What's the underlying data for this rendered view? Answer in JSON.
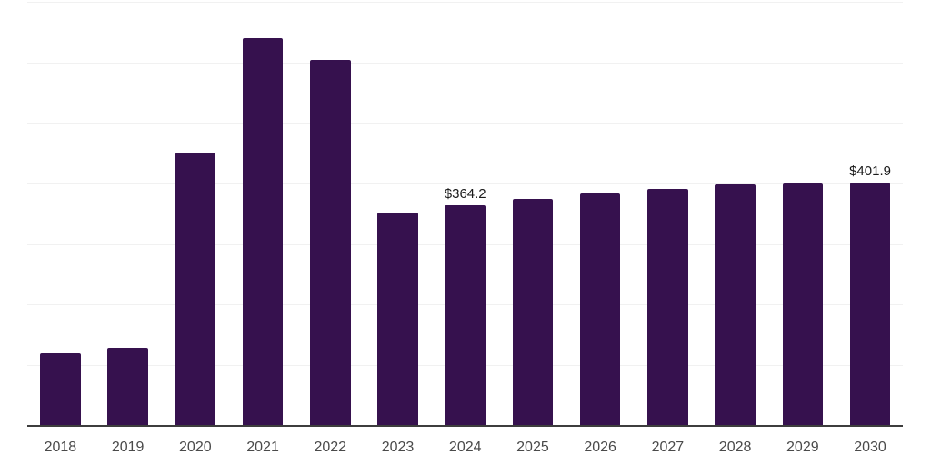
{
  "chart_data": {
    "type": "bar",
    "title": "",
    "xlabel": "",
    "ylabel": "",
    "categories": [
      "2018",
      "2019",
      "2020",
      "2021",
      "2022",
      "2023",
      "2024",
      "2025",
      "2026",
      "2027",
      "2028",
      "2029",
      "2030"
    ],
    "values": [
      119,
      128,
      451,
      640,
      604,
      352,
      364.2,
      374,
      384,
      391,
      398,
      400,
      401.9
    ],
    "bar_labels": [
      null,
      null,
      null,
      null,
      null,
      null,
      "$364.2",
      null,
      null,
      null,
      null,
      null,
      "$401.9"
    ],
    "ylim": [
      0,
      700
    ],
    "grid_interval": 100,
    "grid": "horizontal-only",
    "legend": "none",
    "y_tick_labels_visible": false
  },
  "colors": {
    "bar": "#36114e",
    "gridline": "#f1f1f1",
    "axis_line": "#3d3d3d",
    "tick_label": "#4a4a4a",
    "bar_label": "#1a1a1a",
    "background": "#ffffff"
  }
}
